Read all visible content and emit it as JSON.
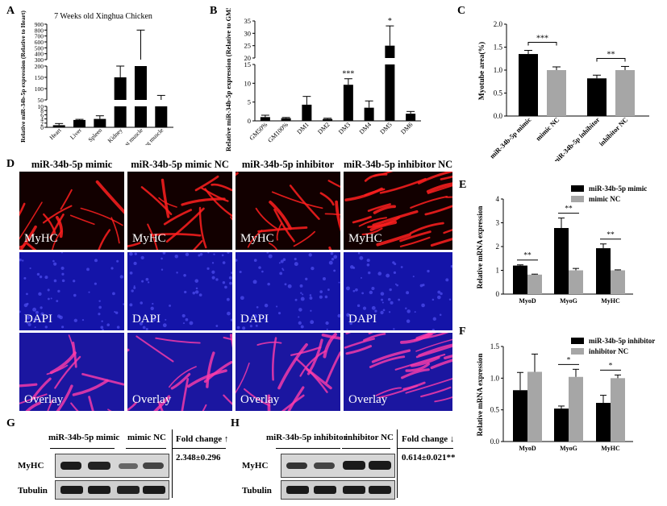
{
  "panels": {
    "A": {
      "label": "A",
      "title": "7 Weeks old Xinghua Chicken"
    },
    "B": {
      "label": "B"
    },
    "C": {
      "label": "C"
    },
    "D": {
      "label": "D"
    },
    "E": {
      "label": "E"
    },
    "F": {
      "label": "F"
    },
    "G": {
      "label": "G"
    },
    "H": {
      "label": "H"
    }
  },
  "microscopy": {
    "column_headers": [
      "miR-34b-5p mimic",
      "miR-34b-5p mimic NC",
      "miR-34b-5p inhibitor",
      "miR-34b-5p inhibitor NC"
    ],
    "row_labels": [
      "MyHC",
      "DAPI",
      "Overlay"
    ]
  },
  "western_G": {
    "group1": "miR-34b-5p mimic",
    "group2": "mimic NC",
    "fold_header": "Fold change ↑",
    "fold_value": "2.348±0.296",
    "rows": [
      "MyHC",
      "Tubulin"
    ]
  },
  "western_H": {
    "group1": "miR-34b-5p inhibitor",
    "group2": "inhibitor NC",
    "fold_header": "Fold change ↓",
    "fold_value": "0.614±0.021**",
    "rows": [
      "MyHC",
      "Tubulin"
    ]
  },
  "colors": {
    "black_bar": "#000000",
    "gray_bar": "#a6a6a6",
    "red_stain": "#ff1a1a",
    "blue_stain": "#1e1ec8"
  },
  "chart_data": [
    {
      "id": "A",
      "type": "bar",
      "title": "7 Weeks old Xinghua Chicken",
      "ylabel": "Relative miR-34b-5p expression (Relative to Heart)",
      "categories": [
        "Heart",
        "Liver",
        "Spleen",
        "Kidney",
        "Breast muscle",
        "Leg muscle"
      ],
      "values": [
        1,
        3.5,
        4,
        150,
        300,
        50
      ],
      "errors": [
        0.8,
        0.3,
        1.5,
        100,
        500,
        20
      ],
      "axis_break": true,
      "yticks": [
        "0",
        "2",
        "4",
        "6",
        "8",
        "10",
        "50",
        "100",
        "150",
        "200",
        "300",
        "400",
        "500",
        "600",
        "700",
        "800",
        "900"
      ]
    },
    {
      "id": "B",
      "type": "bar",
      "ylabel": "Relative miR-34b-5p expression (Relative to GM50%)",
      "categories": [
        "GM50%",
        "GM100%",
        "DM1",
        "DM2",
        "DM3",
        "DM4",
        "DM5",
        "DM6"
      ],
      "values": [
        1,
        0.7,
        4.3,
        0.5,
        9.6,
        3.5,
        25,
        1.9
      ],
      "errors": [
        0.5,
        0.2,
        2.2,
        0.2,
        1.6,
        1.8,
        8,
        0.6
      ],
      "significance": [
        "",
        "",
        "",
        "",
        "***",
        "",
        "*",
        ""
      ],
      "axis_break": true,
      "yticks": [
        "0",
        "5",
        "10",
        "15",
        "20",
        "25",
        "30",
        "35"
      ]
    },
    {
      "id": "C",
      "type": "bar",
      "ylabel": "Myotube area(%)",
      "categories": [
        "miR-34b-5p mimic",
        "mimic NC",
        "miR-34b-5p inhibitor",
        "inhibitor NC"
      ],
      "values": [
        1.35,
        1.0,
        0.82,
        1.0
      ],
      "errors": [
        0.08,
        0.07,
        0.07,
        0.08
      ],
      "ylim": [
        0,
        2.0
      ],
      "yticks": [
        "0.0",
        "0.5",
        "1.0",
        "1.5",
        "2.0"
      ],
      "brackets": [
        {
          "from": 0,
          "to": 1,
          "label": "***"
        },
        {
          "from": 2,
          "to": 3,
          "label": "**"
        }
      ]
    },
    {
      "id": "E",
      "type": "bar",
      "ylabel": "Relative mRNA expression",
      "categories": [
        "MyoD",
        "MyoG",
        "MyHC"
      ],
      "series": [
        {
          "name": "miR-34b-5p mimic",
          "values": [
            1.2,
            2.78,
            1.93
          ],
          "errors": [
            0.03,
            0.42,
            0.18
          ]
        },
        {
          "name": "mimic NC",
          "values": [
            0.82,
            1.0,
            1.0
          ],
          "errors": [
            0.02,
            0.08,
            0.02
          ]
        }
      ],
      "ylim": [
        0,
        4
      ],
      "yticks": [
        "0",
        "1",
        "2",
        "3",
        "4"
      ],
      "brackets": [
        {
          "cat": 0,
          "label": "**"
        },
        {
          "cat": 1,
          "label": "**"
        },
        {
          "cat": 2,
          "label": "**"
        }
      ]
    },
    {
      "id": "F",
      "type": "bar",
      "ylabel": "Relative mRNA expression",
      "categories": [
        "MyoD",
        "MyoG",
        "MyHC"
      ],
      "series": [
        {
          "name": "miR-34b-5p inhibitor",
          "values": [
            0.81,
            0.52,
            0.61
          ],
          "errors": [
            0.28,
            0.04,
            0.12
          ]
        },
        {
          "name": "inhibitor NC",
          "values": [
            1.1,
            1.02,
            1.0
          ],
          "errors": [
            0.28,
            0.12,
            0.05
          ]
        }
      ],
      "ylim": [
        0,
        1.5
      ],
      "yticks": [
        "0.0",
        "0.5",
        "1.0",
        "1.5"
      ],
      "brackets": [
        {
          "cat": 1,
          "label": "*"
        },
        {
          "cat": 2,
          "label": "*"
        }
      ]
    }
  ]
}
